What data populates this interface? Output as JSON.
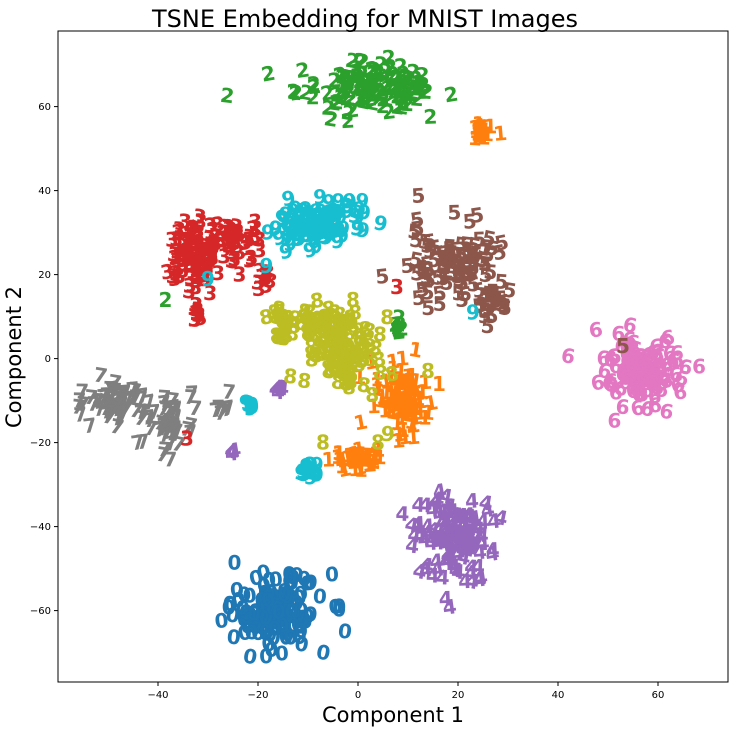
{
  "chart_data": {
    "type": "scatter",
    "title": "TSNE Embedding for MNIST Images",
    "xlabel": "Component 1",
    "ylabel": "Component 2",
    "xlim": [
      -60,
      74
    ],
    "ylim": [
      -77,
      78
    ],
    "xticks": [
      -40,
      -20,
      0,
      20,
      40,
      60
    ],
    "yticks": [
      -60,
      -40,
      -20,
      0,
      20,
      40,
      60
    ],
    "grid": false,
    "marker": "digit glyph",
    "series": [
      {
        "label": "0",
        "color": "#1f77b4",
        "clusters": [
          {
            "cx": -17,
            "cy": -60,
            "sx": 5,
            "sy": 4.5,
            "n": 140
          }
        ]
      },
      {
        "label": "1",
        "color": "#ff7f0e",
        "clusters": [
          {
            "cx": 9,
            "cy": -9,
            "sx": 2.5,
            "sy": 4,
            "n": 90
          },
          {
            "cx": -1,
            "cy": -24,
            "sx": 2.3,
            "sy": 1.4,
            "n": 45
          },
          {
            "cx": 24.5,
            "cy": 54,
            "sx": 1.2,
            "sy": 1,
            "n": 22
          }
        ]
      },
      {
        "label": "2",
        "color": "#2ca02c",
        "clusters": [
          {
            "cx": 2,
            "cy": 65,
            "sx": 7,
            "sy": 2.8,
            "n": 130
          },
          {
            "cx": 8,
            "cy": 7,
            "sx": 0.6,
            "sy": 0.9,
            "n": 8
          }
        ]
      },
      {
        "label": "3",
        "color": "#d62728",
        "clusters": [
          {
            "cx": -33,
            "cy": 25,
            "sx": 3,
            "sy": 4.5,
            "n": 100
          },
          {
            "cx": -25,
            "cy": 29,
            "sx": 2.5,
            "sy": 2,
            "n": 35
          },
          {
            "cx": -19,
            "cy": 20,
            "sx": 0.7,
            "sy": 1,
            "n": 10
          },
          {
            "cx": -32,
            "cy": 11,
            "sx": 0.7,
            "sy": 1.4,
            "n": 10
          }
        ]
      },
      {
        "label": "4",
        "color": "#9467bd",
        "clusters": [
          {
            "cx": 19,
            "cy": -43,
            "sx": 4.5,
            "sy": 5,
            "n": 120
          },
          {
            "cx": -16,
            "cy": -7,
            "sx": 0.4,
            "sy": 0.5,
            "n": 4
          },
          {
            "cx": -25,
            "cy": -22,
            "sx": 0.4,
            "sy": 0.4,
            "n": 3
          }
        ]
      },
      {
        "label": "5",
        "color": "#8c564b",
        "clusters": [
          {
            "cx": 19,
            "cy": 23,
            "sx": 4.5,
            "sy": 4.5,
            "n": 100
          },
          {
            "cx": 27,
            "cy": 13,
            "sx": 2,
            "sy": 2,
            "n": 25
          }
        ]
      },
      {
        "label": "6",
        "color": "#e377c2",
        "clusters": [
          {
            "cx": 57,
            "cy": -3,
            "sx": 4.5,
            "sy": 4,
            "n": 120
          }
        ]
      },
      {
        "label": "7",
        "color": "#7f7f7f",
        "clusters": [
          {
            "cx": -48,
            "cy": -10,
            "sx": 3,
            "sy": 2.5,
            "n": 60
          },
          {
            "cx": -38,
            "cy": -15,
            "sx": 2.5,
            "sy": 3.5,
            "n": 50
          },
          {
            "cx": -27,
            "cy": -12,
            "sx": 0.9,
            "sy": 1.2,
            "n": 8
          }
        ]
      },
      {
        "label": "8",
        "color": "#bcbd22",
        "clusters": [
          {
            "cx": -10,
            "cy": 8,
            "sx": 4.5,
            "sy": 2,
            "n": 60
          },
          {
            "cx": -3,
            "cy": 1,
            "sx": 3.5,
            "sy": 4.5,
            "n": 90
          }
        ]
      },
      {
        "label": "9",
        "color": "#17becf",
        "clusters": [
          {
            "cx": -8,
            "cy": 32,
            "sx": 4,
            "sy": 3.2,
            "n": 110
          },
          {
            "cx": -9,
            "cy": -27,
            "sx": 1.3,
            "sy": 1,
            "n": 15
          },
          {
            "cx": -22,
            "cy": -11,
            "sx": 0.8,
            "sy": 0.6,
            "n": 8
          }
        ]
      }
    ],
    "annotations": [
      {
        "text": "3",
        "x": 7.8,
        "y": 17,
        "color": "#d62728"
      },
      {
        "text": "3",
        "x": -23.7,
        "y": 20,
        "color": "#d62728"
      },
      {
        "text": "3",
        "x": -34.2,
        "y": -19,
        "color": "#d62728"
      },
      {
        "text": "3",
        "x": -30.7,
        "y": 19,
        "color": "#d62728"
      },
      {
        "text": "9",
        "x": -18,
        "y": 30,
        "color": "#17becf"
      },
      {
        "text": "9",
        "x": -18.3,
        "y": 22,
        "color": "#17becf"
      },
      {
        "text": "9",
        "x": -30,
        "y": 19,
        "color": "#17becf"
      },
      {
        "text": "9",
        "x": 23,
        "y": 11,
        "color": "#17becf"
      },
      {
        "text": "2",
        "x": -38.5,
        "y": 14,
        "color": "#2ca02c"
      },
      {
        "text": "5",
        "x": 53,
        "y": 3,
        "color": "#8c564b"
      },
      {
        "text": "1",
        "x": 16.2,
        "y": -6,
        "color": "#ff7f0e"
      },
      {
        "text": "1",
        "x": 9,
        "y": -17,
        "color": "#ff7f0e"
      },
      {
        "text": "8",
        "x": 14,
        "y": -3,
        "color": "#bcbd22"
      },
      {
        "text": "8",
        "x": -7,
        "y": -20,
        "color": "#bcbd22"
      },
      {
        "text": "8",
        "x": 4,
        "y": -20,
        "color": "#bcbd22"
      },
      {
        "text": "8",
        "x": -1,
        "y": 14,
        "color": "#bcbd22"
      },
      {
        "text": "9",
        "x": 6,
        "y": -18,
        "color": "#bcbd22"
      },
      {
        "text": "4",
        "x": -16,
        "y": -8,
        "color": "#9467bd"
      }
    ]
  }
}
